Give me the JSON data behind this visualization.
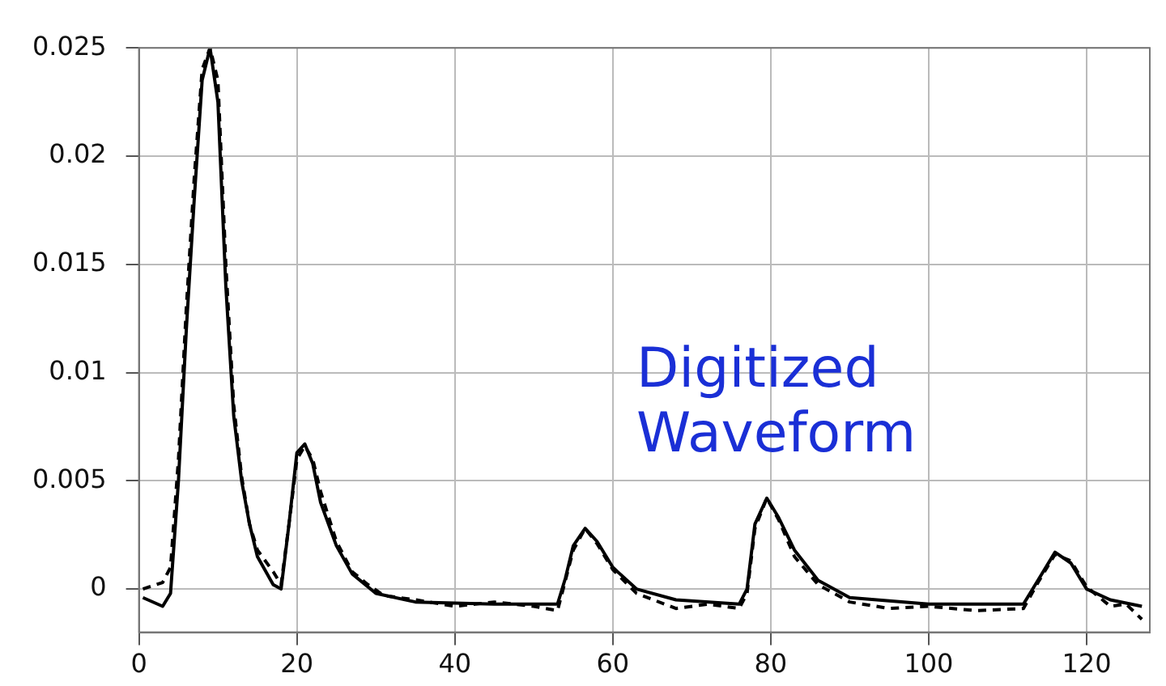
{
  "chart_data": {
    "type": "line",
    "annotations": [
      "Digitized Waveform"
    ],
    "xlim": [
      0,
      128
    ],
    "xticks": [
      0,
      20,
      40,
      60,
      80,
      100,
      120
    ],
    "ylim": [
      -0.002,
      0.025
    ],
    "yticks": [
      0,
      0.005,
      0.01,
      0.015,
      0.02,
      0.025
    ],
    "grid": true,
    "legend": false,
    "marker": "none",
    "series": [
      {
        "color": "#000000",
        "line_style": "solid",
        "x": [
          0.5,
          3,
          4,
          5,
          6,
          7,
          8,
          9,
          10,
          11,
          12,
          13,
          14,
          15,
          17,
          18,
          19,
          20,
          21,
          22,
          23,
          25,
          27,
          30,
          35,
          45,
          53,
          54,
          55,
          56.5,
          58,
          60,
          63,
          68,
          76,
          77,
          78,
          79.5,
          81,
          83,
          86,
          90,
          100,
          112,
          114,
          116,
          118,
          120,
          123,
          127
        ],
        "values": [
          -0.0004,
          -0.0008,
          -0.0002,
          0.005,
          0.012,
          0.018,
          0.0235,
          0.025,
          0.0225,
          0.014,
          0.008,
          0.005,
          0.003,
          0.0015,
          0.0002,
          0,
          0.003,
          0.0063,
          0.0067,
          0.0058,
          0.004,
          0.002,
          0.0007,
          -0.0002,
          -0.0006,
          -0.0007,
          -0.0007,
          0.0005,
          0.002,
          0.0028,
          0.0022,
          0.001,
          0,
          -0.0005,
          -0.0007,
          0,
          0.003,
          0.0042,
          0.0033,
          0.0018,
          0.0004,
          -0.0004,
          -0.0007,
          -0.0007,
          0.0005,
          0.0017,
          0.0012,
          0,
          -0.0005,
          -0.0008
        ]
      },
      {
        "color": "#000000",
        "line_style": "dashed",
        "x": [
          0.5,
          3,
          4,
          5,
          6,
          7,
          8,
          9,
          10,
          11,
          12,
          13,
          14,
          15,
          17,
          18,
          19,
          20,
          21,
          22,
          23,
          25,
          27,
          29,
          31,
          35,
          40,
          45,
          50,
          53,
          54,
          55,
          56.5,
          58,
          60,
          63,
          68,
          72,
          76,
          77,
          78,
          79.5,
          81,
          83,
          86,
          90,
          95,
          100,
          106,
          112,
          114,
          116,
          118,
          120,
          123,
          125,
          127
        ],
        "values": [
          0,
          0.0003,
          0.001,
          0.006,
          0.013,
          0.019,
          0.024,
          0.025,
          0.0235,
          0.015,
          0.0085,
          0.0052,
          0.003,
          0.0018,
          0.0008,
          0.0002,
          0.003,
          0.006,
          0.0066,
          0.006,
          0.0045,
          0.0022,
          0.0008,
          0.0002,
          -0.0003,
          -0.0005,
          -0.0008,
          -0.0006,
          -0.0008,
          -0.001,
          0.0004,
          0.0018,
          0.0028,
          0.0021,
          0.0009,
          -0.0002,
          -0.0009,
          -0.0007,
          -0.0009,
          -0.0002,
          0.0028,
          0.0042,
          0.0032,
          0.0015,
          0.0002,
          -0.0006,
          -0.0009,
          -0.0008,
          -0.001,
          -0.0009,
          0.0004,
          0.0016,
          0.0013,
          0.0001,
          -0.0008,
          -0.0007,
          -0.0014
        ]
      }
    ]
  }
}
